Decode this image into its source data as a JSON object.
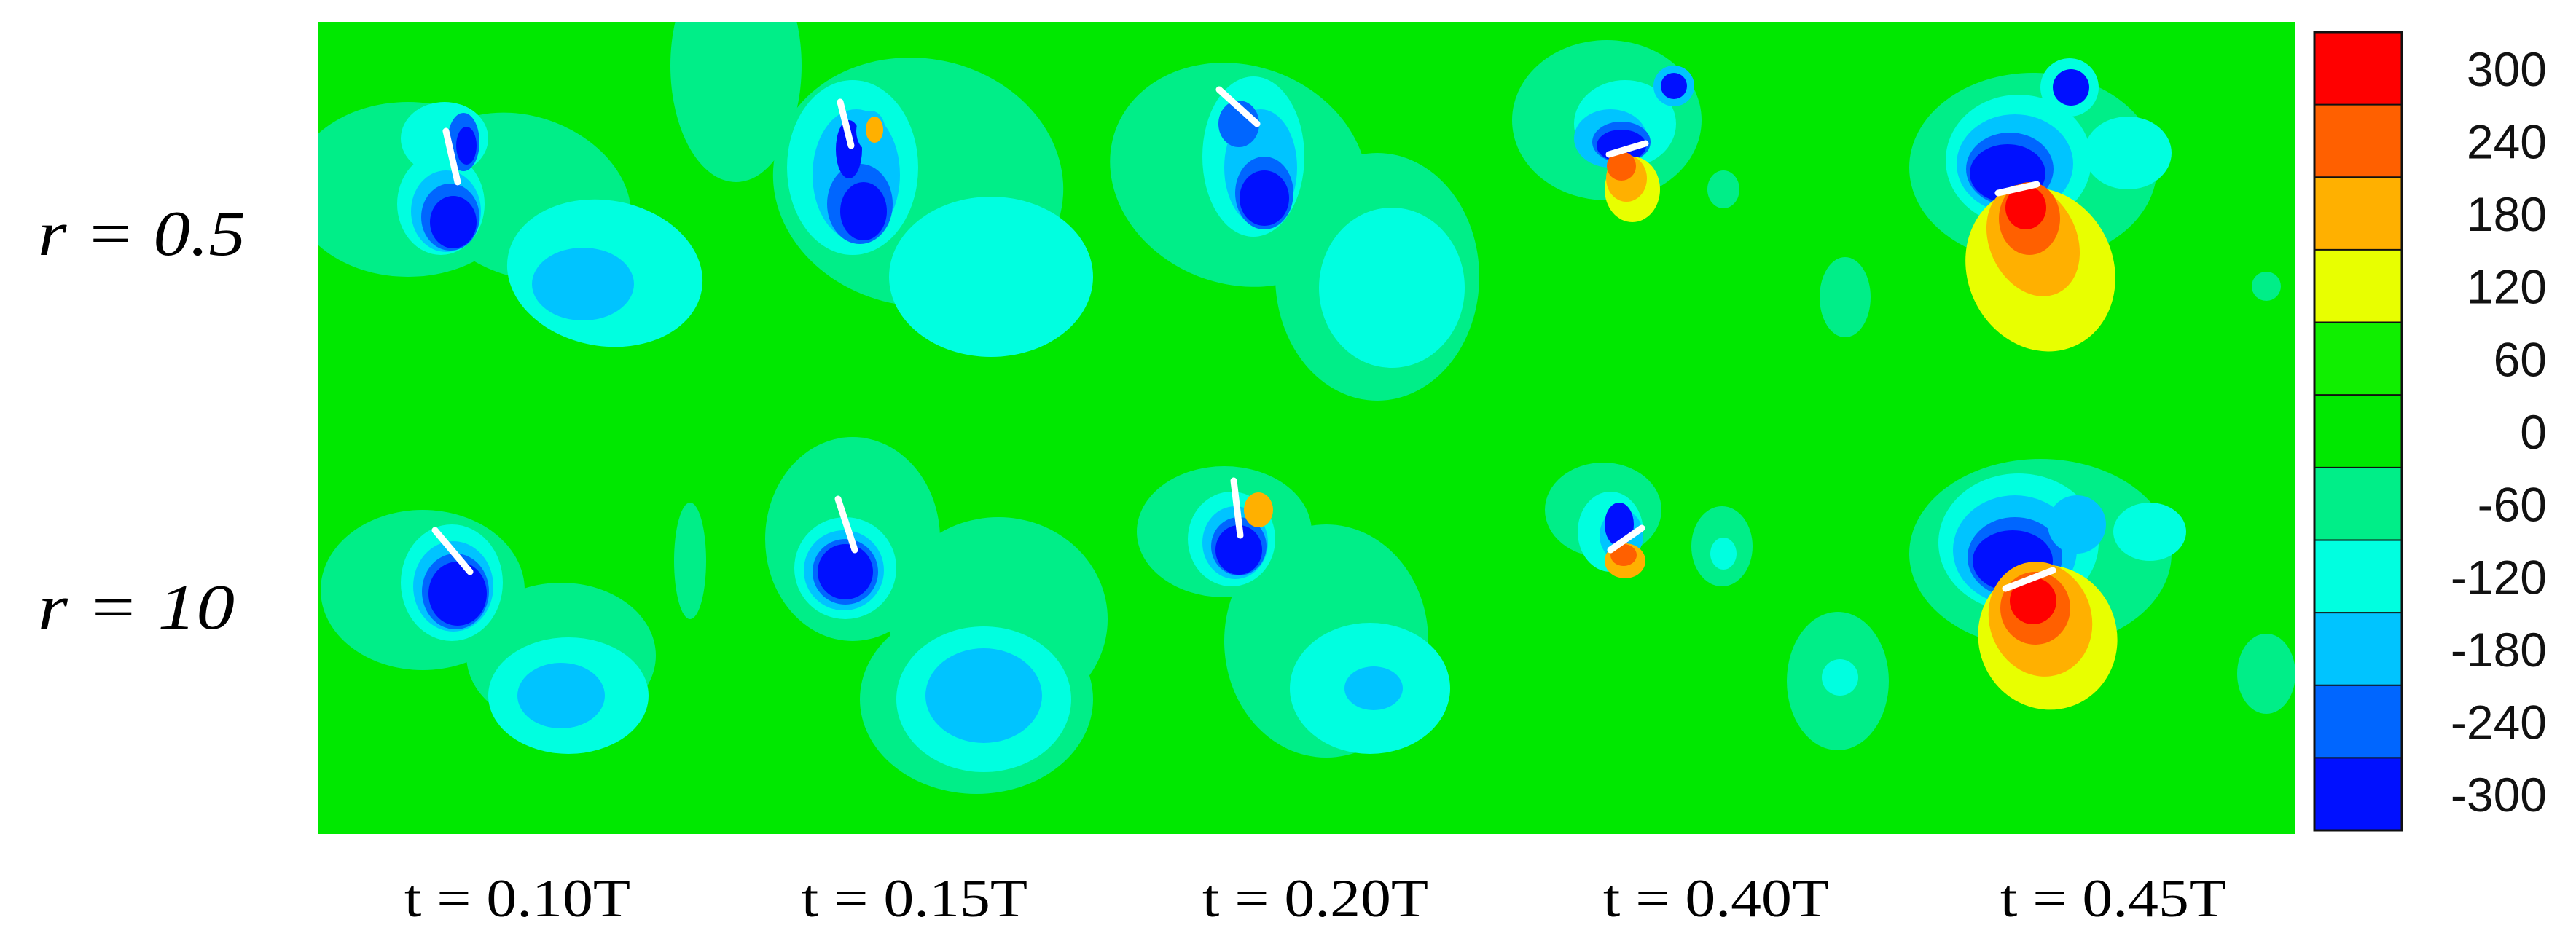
{
  "chart_data": {
    "type": "heatmap",
    "title": "",
    "row_labels": [
      "r = 0.5",
      "r = 10"
    ],
    "column_labels": [
      "t = 0.10T",
      "t = 0.15T",
      "t = 0.20T",
      "t = 0.40T",
      "t = 0.45T"
    ],
    "colorbar": {
      "levels": [
        300,
        240,
        180,
        120,
        60,
        0,
        -60,
        -120,
        -180,
        -240,
        -300
      ],
      "tick_labels": [
        "300",
        "240",
        "180",
        "120",
        "60",
        "0",
        "-60",
        "-120",
        "-180",
        "-240",
        "-300"
      ],
      "colors": [
        "#ff0000",
        "#ff6000",
        "#ffb000",
        "#e8ff00",
        "#10ef00",
        "#00e800",
        "#00ee88",
        "#00ffe0",
        "#00c4ff",
        "#0066ff",
        "#0010ff"
      ],
      "range": [
        -300,
        300
      ]
    },
    "background_level": 0,
    "plate_color": "#ffffff"
  }
}
